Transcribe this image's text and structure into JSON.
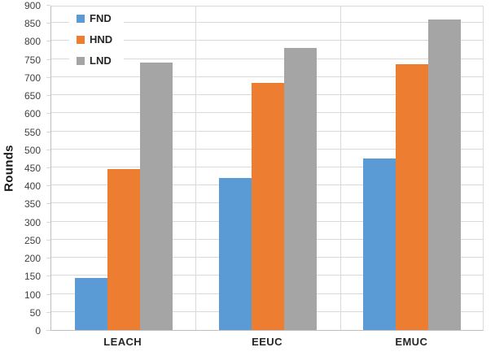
{
  "chart_data": {
    "type": "bar",
    "title": "",
    "xlabel": "",
    "ylabel": "Rounds",
    "categories": [
      "LEACH",
      "EEUC",
      "EMUC"
    ],
    "series": [
      {
        "name": "FND",
        "color": "#5B9BD5",
        "values": [
          145,
          420,
          475
        ]
      },
      {
        "name": "HND",
        "color": "#ED7D31",
        "values": [
          445,
          685,
          735
        ]
      },
      {
        "name": "LND",
        "color": "#A5A5A5",
        "values": [
          740,
          780,
          860
        ]
      }
    ],
    "ylim": [
      0,
      900
    ],
    "y_ticks": [
      0,
      50,
      100,
      150,
      200,
      250,
      300,
      350,
      400,
      450,
      500,
      550,
      600,
      650,
      700,
      750,
      800,
      850,
      900
    ],
    "grid": true,
    "legend_position": "top-left-inside",
    "legend_entries": [
      "FND",
      "HND",
      "LND"
    ]
  },
  "style_colors": {
    "gridline": "#d9d9d9",
    "axis_line": "#bfbfbf",
    "tick_text": "#404040",
    "label_text": "#262626"
  }
}
